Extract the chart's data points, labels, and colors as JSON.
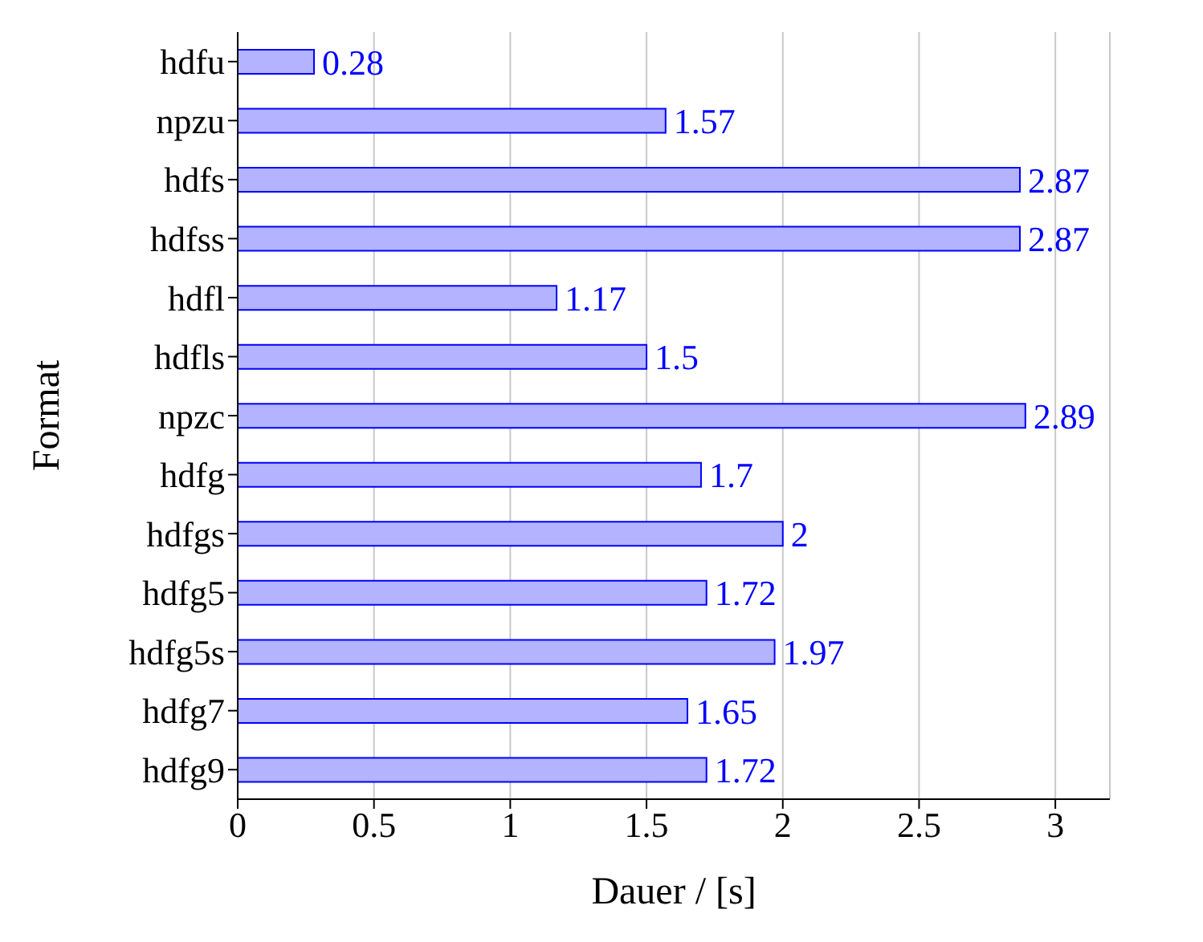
{
  "chart_data": {
    "type": "bar",
    "orientation": "horizontal",
    "xlabel": "Dauer / [s]",
    "ylabel": "Format",
    "categories": [
      "hdfu",
      "npzu",
      "hdfs",
      "hdfss",
      "hdfl",
      "hdfls",
      "npzc",
      "hdfg",
      "hdfgs",
      "hdfg5",
      "hdfg5s",
      "hdfg7",
      "hdfg9"
    ],
    "values": [
      0.28,
      1.57,
      2.87,
      2.87,
      1.17,
      1.5,
      2.89,
      1.7,
      2,
      1.72,
      1.97,
      1.65,
      1.72
    ],
    "color": "#b3b3ff",
    "xlim": [
      0,
      3.2
    ],
    "xticks": [
      0,
      0.5,
      1,
      1.5,
      2,
      2.5,
      3
    ],
    "grid": "x",
    "data_labels": true,
    "legend": false
  }
}
